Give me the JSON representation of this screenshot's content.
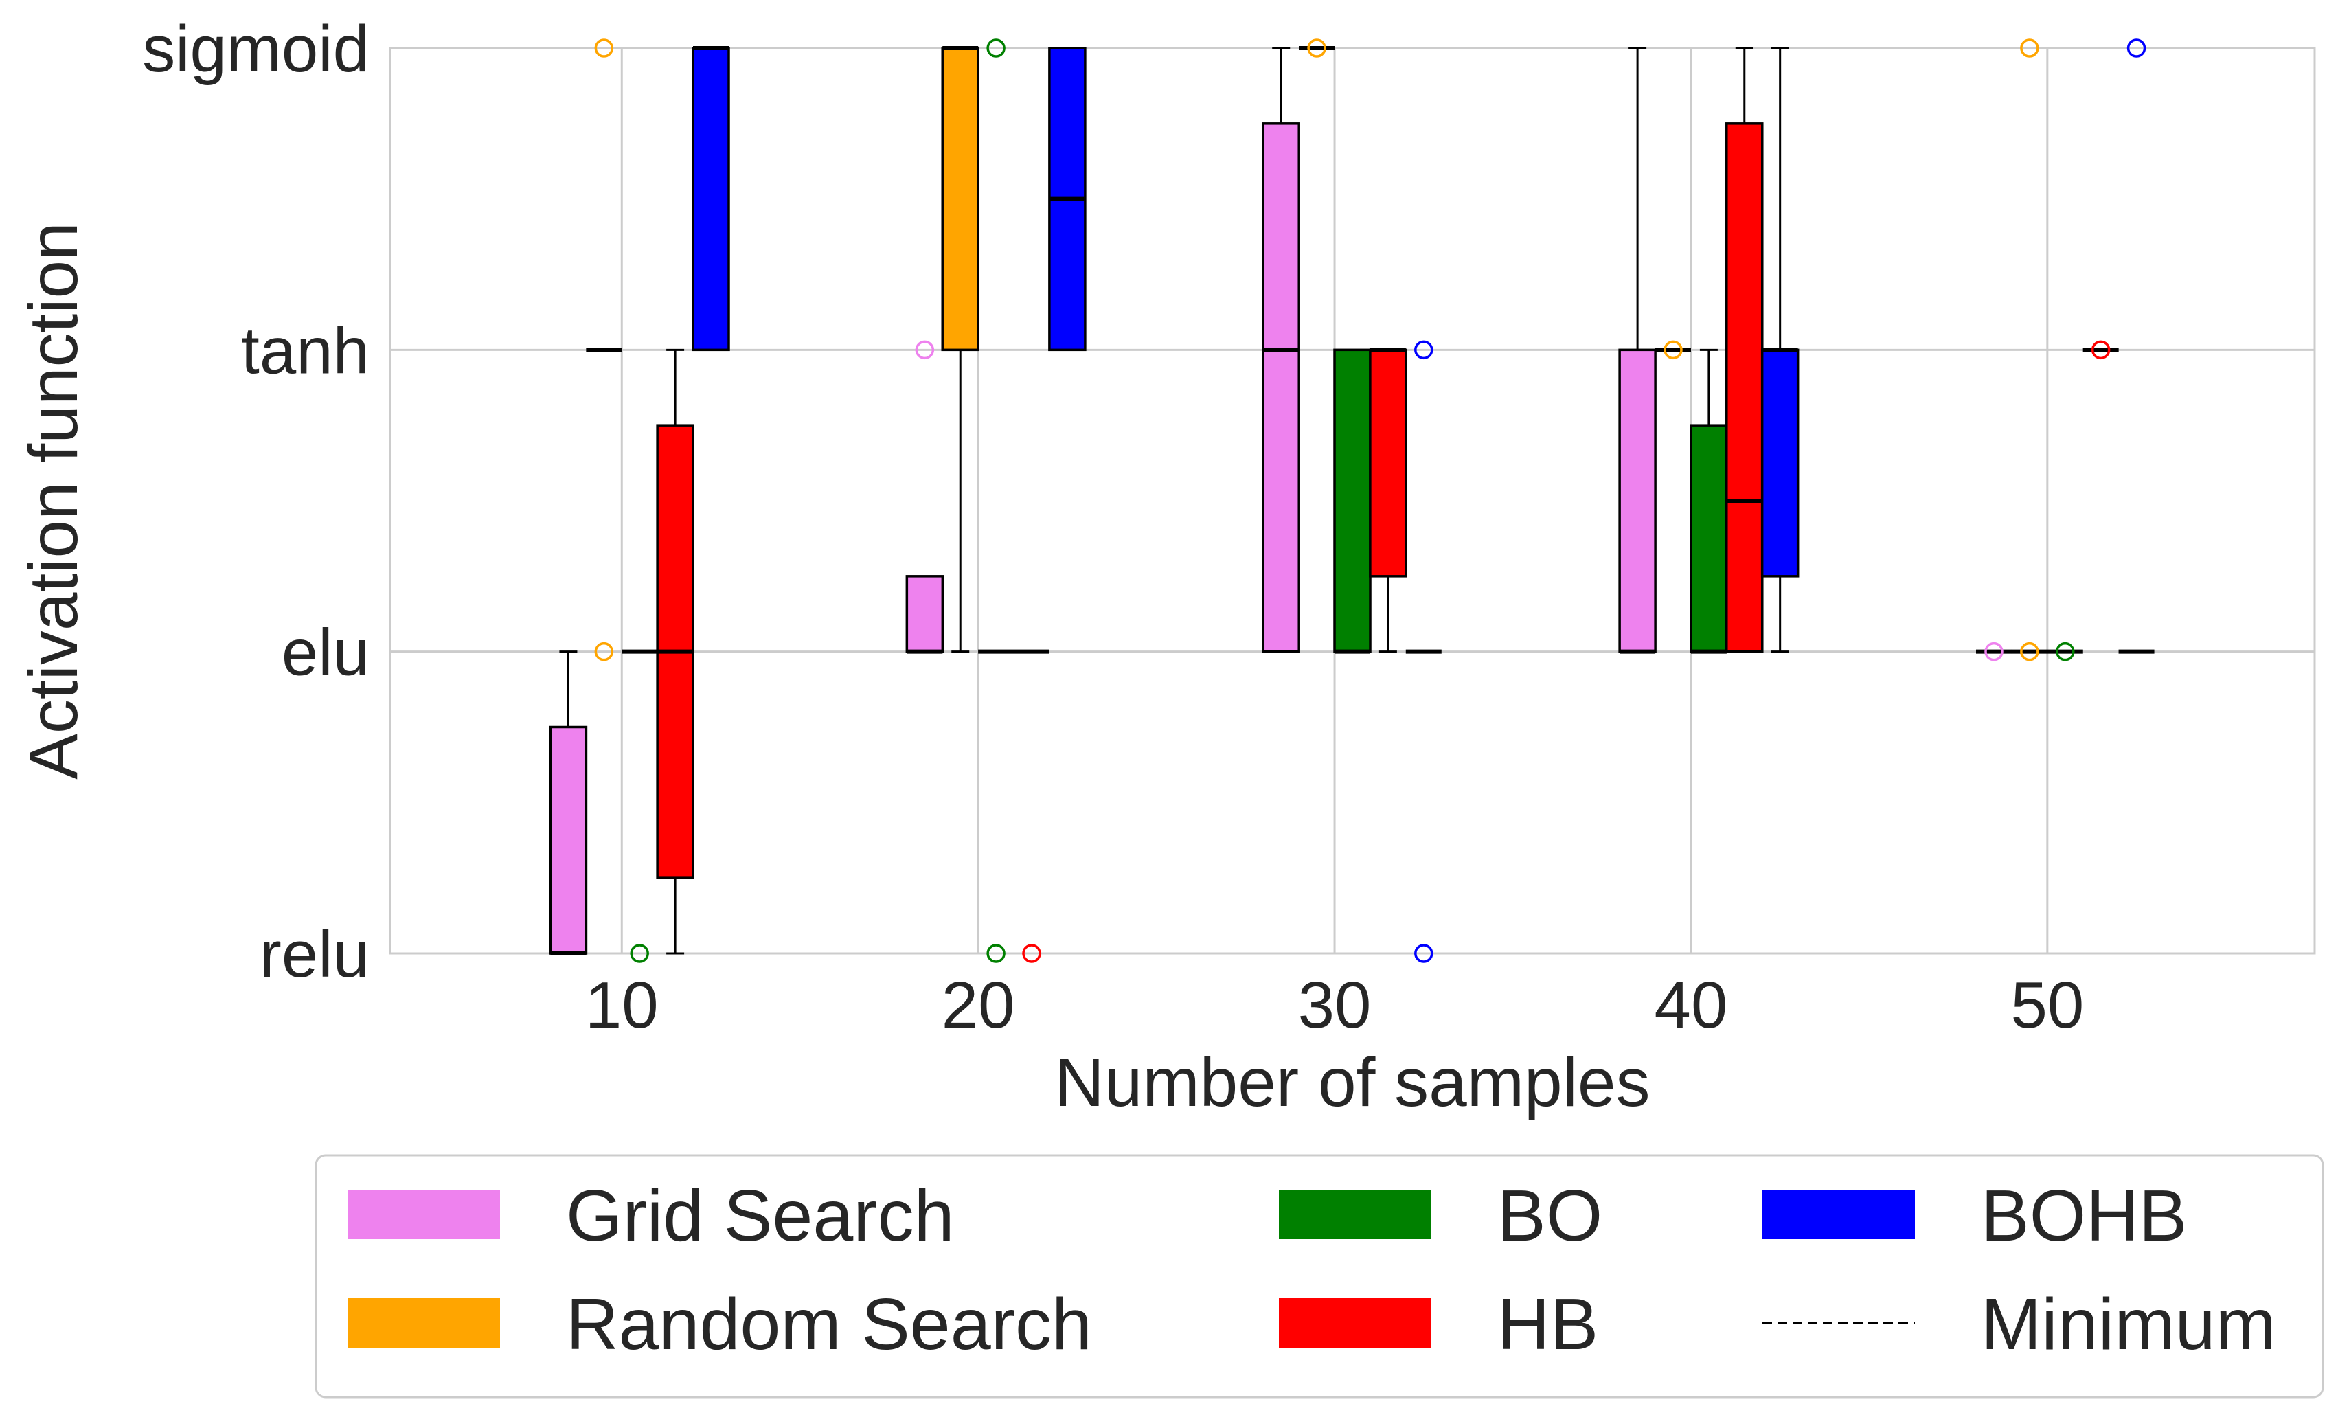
{
  "chart_data": {
    "type": "box",
    "title": "",
    "xlabel": "Number of samples",
    "ylabel": "Activation function",
    "categories": [
      "10",
      "20",
      "30",
      "40",
      "50"
    ],
    "x_values": [
      10,
      20,
      30,
      40,
      50
    ],
    "xlim": [
      3.5,
      57.5
    ],
    "y_categories": [
      "relu",
      "elu",
      "tanh",
      "sigmoid"
    ],
    "y_values": [
      0,
      1,
      2,
      3
    ],
    "ylim": [
      0,
      3
    ],
    "grid": true,
    "legend_position": "bottom",
    "series": [
      {
        "name": "Grid Search",
        "color": "#ee82ee",
        "offset": -1.5,
        "boxes": [
          {
            "x": 10,
            "q1": 0,
            "median": 0,
            "q3": 0.75,
            "whisker_low": 0,
            "whisker_high": 1,
            "fliers": []
          },
          {
            "x": 20,
            "q1": 1,
            "median": 1,
            "q3": 1.25,
            "whisker_low": 1,
            "whisker_high": 1.25,
            "fliers": [
              2
            ]
          },
          {
            "x": 30,
            "q1": 1,
            "median": 2,
            "q3": 2.75,
            "whisker_low": 1,
            "whisker_high": 3,
            "fliers": []
          },
          {
            "x": 40,
            "q1": 1,
            "median": 1,
            "q3": 2,
            "whisker_low": 1,
            "whisker_high": 3,
            "fliers": []
          },
          {
            "x": 50,
            "q1": 1,
            "median": 1,
            "q3": 1,
            "whisker_low": 1,
            "whisker_high": 1,
            "fliers": [
              1
            ]
          }
        ]
      },
      {
        "name": "Random Search",
        "color": "#ffa500",
        "offset": -0.5,
        "boxes": [
          {
            "x": 10,
            "q1": 2,
            "median": 2,
            "q3": 2,
            "whisker_low": 2,
            "whisker_high": 2,
            "fliers": [
              1,
              3
            ]
          },
          {
            "x": 20,
            "q1": 2,
            "median": 3,
            "q3": 3,
            "whisker_low": 1,
            "whisker_high": 3,
            "fliers": []
          },
          {
            "x": 30,
            "q1": 3,
            "median": 3,
            "q3": 3,
            "whisker_low": 3,
            "whisker_high": 3,
            "fliers": [
              3
            ]
          },
          {
            "x": 40,
            "q1": 2,
            "median": 2,
            "q3": 2,
            "whisker_low": 2,
            "whisker_high": 2,
            "fliers": [
              2
            ]
          },
          {
            "x": 50,
            "q1": 1,
            "median": 1,
            "q3": 1,
            "whisker_low": 1,
            "whisker_high": 1,
            "fliers": [
              1,
              3
            ]
          }
        ]
      },
      {
        "name": "BO",
        "color": "#008000",
        "offset": 0.5,
        "boxes": [
          {
            "x": 10,
            "q1": 1,
            "median": 1,
            "q3": 1,
            "whisker_low": 1,
            "whisker_high": 1,
            "fliers": [
              0
            ]
          },
          {
            "x": 20,
            "q1": 1,
            "median": 1,
            "q3": 1,
            "whisker_low": 1,
            "whisker_high": 1,
            "fliers": [
              0,
              3
            ]
          },
          {
            "x": 30,
            "q1": 1,
            "median": 1,
            "q3": 2,
            "whisker_low": 1,
            "whisker_high": 2,
            "fliers": []
          },
          {
            "x": 40,
            "q1": 1,
            "median": 1,
            "q3": 1.75,
            "whisker_low": 1,
            "whisker_high": 2,
            "fliers": []
          },
          {
            "x": 50,
            "q1": 1,
            "median": 1,
            "q3": 1,
            "whisker_low": 1,
            "whisker_high": 1,
            "fliers": [
              1
            ]
          }
        ]
      },
      {
        "name": "HB",
        "color": "#ff0000",
        "offset": 1.5,
        "boxes": [
          {
            "x": 10,
            "q1": 0.25,
            "median": 1,
            "q3": 1.75,
            "whisker_low": 0,
            "whisker_high": 2,
            "fliers": []
          },
          {
            "x": 20,
            "q1": 1,
            "median": 1,
            "q3": 1,
            "whisker_low": 1,
            "whisker_high": 1,
            "fliers": [
              0
            ]
          },
          {
            "x": 30,
            "q1": 1.25,
            "median": 2,
            "q3": 2,
            "whisker_low": 1,
            "whisker_high": 2,
            "fliers": []
          },
          {
            "x": 40,
            "q1": 1,
            "median": 1.5,
            "q3": 2.75,
            "whisker_low": 1,
            "whisker_high": 3,
            "fliers": []
          },
          {
            "x": 50,
            "q1": 2,
            "median": 2,
            "q3": 2,
            "whisker_low": 2,
            "whisker_high": 2,
            "fliers": [
              2
            ]
          }
        ]
      },
      {
        "name": "BOHB",
        "color": "#0000ff",
        "offset": 2.5,
        "boxes": [
          {
            "x": 10,
            "q1": 2,
            "median": 3,
            "q3": 3,
            "whisker_low": 2,
            "whisker_high": 3,
            "fliers": []
          },
          {
            "x": 20,
            "q1": 2,
            "median": 2.5,
            "q3": 3,
            "whisker_low": 2,
            "whisker_high": 3,
            "fliers": []
          },
          {
            "x": 30,
            "q1": 1,
            "median": 1,
            "q3": 1,
            "whisker_low": 1,
            "whisker_high": 1,
            "fliers": [
              0,
              2
            ]
          },
          {
            "x": 40,
            "q1": 1.25,
            "median": 2,
            "q3": 2,
            "whisker_low": 1,
            "whisker_high": 3,
            "fliers": []
          },
          {
            "x": 50,
            "q1": 1,
            "median": 1,
            "q3": 1,
            "whisker_low": 1,
            "whisker_high": 1,
            "fliers": [
              3
            ]
          }
        ]
      }
    ],
    "legend": {
      "entries": [
        {
          "label": "Grid Search",
          "color": "#ee82ee",
          "kind": "patch"
        },
        {
          "label": "Random Search",
          "color": "#ffa500",
          "kind": "patch"
        },
        {
          "label": "BO",
          "color": "#008000",
          "kind": "patch"
        },
        {
          "label": "HB",
          "color": "#ff0000",
          "kind": "patch"
        },
        {
          "label": "BOHB",
          "color": "#0000ff",
          "kind": "patch"
        },
        {
          "label": "Minimum",
          "color": "#000000",
          "kind": "dashed-line"
        }
      ]
    }
  }
}
